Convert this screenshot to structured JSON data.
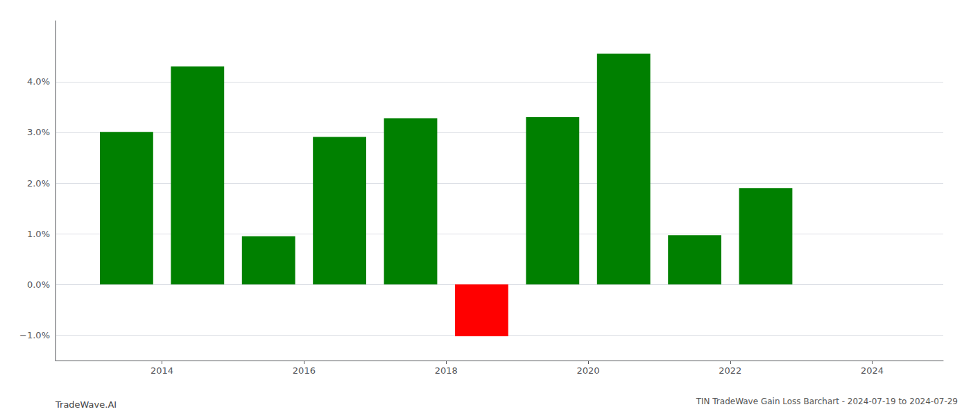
{
  "chart_data": {
    "type": "bar",
    "title": "TIN TradeWave Gain Loss Barchart - 2024-07-19 to 2024-07-29",
    "annotations": [
      "TradeWave.AI"
    ],
    "x": [
      2013.5,
      2014.5,
      2015.5,
      2016.5,
      2017.5,
      2018.5,
      2019.5,
      2020.5,
      2021.5,
      2022.5
    ],
    "values": [
      3.01,
      4.3,
      0.95,
      2.91,
      3.28,
      -1.02,
      3.3,
      4.55,
      0.97,
      1.9
    ],
    "colors": [
      "#008000",
      "#008000",
      "#008000",
      "#008000",
      "#008000",
      "#ff0000",
      "#008000",
      "#008000",
      "#008000",
      "#008000"
    ],
    "xlim": [
      2012.5,
      2025.0
    ],
    "xticks": [
      2014,
      2016,
      2018,
      2020,
      2022,
      2024
    ],
    "ylim": [
      -1.5,
      5.2
    ],
    "yticks": [
      {
        "value": -1.0,
        "label": "−1.0%"
      },
      {
        "value": 0.0,
        "label": "0.0%"
      },
      {
        "value": 1.0,
        "label": "1.0%"
      },
      {
        "value": 2.0,
        "label": "2.0%"
      },
      {
        "value": 3.0,
        "label": "3.0%"
      },
      {
        "value": 4.0,
        "label": "4.0%"
      }
    ],
    "grid": true
  }
}
